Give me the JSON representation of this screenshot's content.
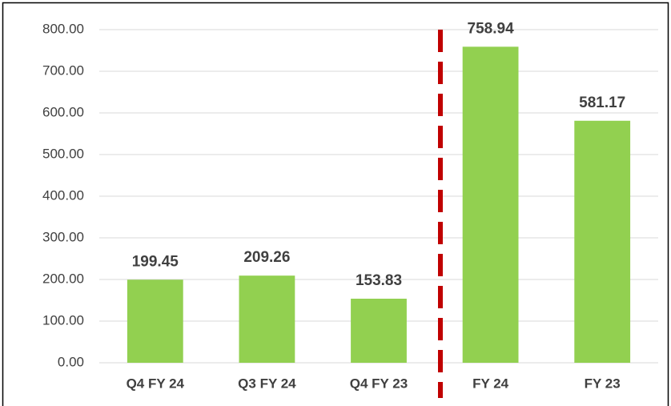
{
  "chart_data": {
    "type": "bar",
    "categories": [
      "Q4 FY 24",
      "Q3 FY 24",
      "Q4 FY 23",
      "FY 24",
      "FY 23"
    ],
    "values": [
      199.45,
      209.26,
      153.83,
      758.94,
      581.17
    ],
    "color": "#92d050",
    "ylim": [
      0,
      800
    ],
    "yticks": [
      {
        "value": 0,
        "label": "0.00"
      },
      {
        "value": 100,
        "label": "100.00"
      },
      {
        "value": 200,
        "label": "200.00"
      },
      {
        "value": 300,
        "label": "300.00"
      },
      {
        "value": 400,
        "label": "400.00"
      },
      {
        "value": 500,
        "label": "500.00"
      },
      {
        "value": 600,
        "label": "600.00"
      },
      {
        "value": 700,
        "label": "700.00"
      },
      {
        "value": 800,
        "label": "800.00"
      }
    ],
    "grid": true
  }
}
